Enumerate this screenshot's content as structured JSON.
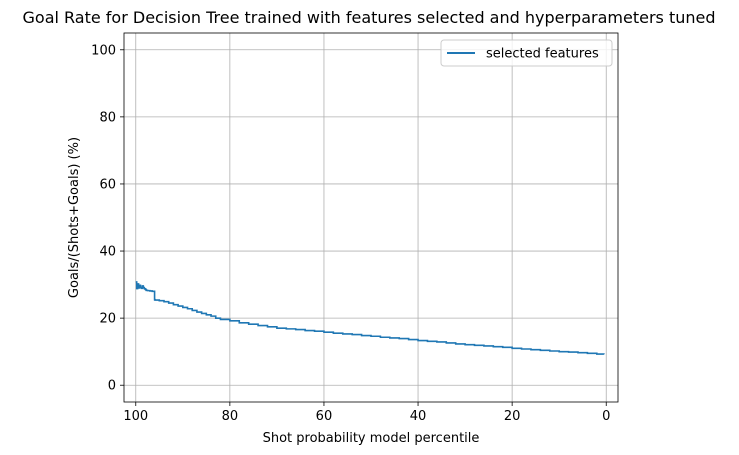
{
  "chart_data": {
    "type": "line",
    "title": "Goal Rate for Decision Tree trained with features selected and hyperparameters tuned",
    "xlabel": "Shot probability model percentile",
    "ylabel": "Goals/(Shots+Goals) (%)",
    "xlim": [
      102.5,
      -2.5
    ],
    "ylim": [
      -5,
      105
    ],
    "x_inverted": true,
    "xticks": [
      100,
      80,
      60,
      40,
      20,
      0
    ],
    "yticks": [
      0,
      20,
      40,
      60,
      80,
      100
    ],
    "grid": true,
    "legend_position": "top-right",
    "series": [
      {
        "name": "selected features",
        "color": "#1f77b4",
        "step": true,
        "x": [
          100,
          99.8,
          99.6,
          99.4,
          99.2,
          99.0,
          98.8,
          98.6,
          98.4,
          98.2,
          98.0,
          97.8,
          97.5,
          97.0,
          96.5,
          96.0,
          95.9,
          95.0,
          94.0,
          93.0,
          92.0,
          91.0,
          90.0,
          89.0,
          88.0,
          87.0,
          86.0,
          85.0,
          84.0,
          83.0,
          82.0,
          80.0,
          78.0,
          76.0,
          74.0,
          72.0,
          70.0,
          68.0,
          66.0,
          64.0,
          62.0,
          60.0,
          58.0,
          56.0,
          54.0,
          52.0,
          50.0,
          48.0,
          46.0,
          44.0,
          42.0,
          40.0,
          38.0,
          36.0,
          34.0,
          32.0,
          30.0,
          28.0,
          26.0,
          24.0,
          22.0,
          20.0,
          18.0,
          16.0,
          14.0,
          12.0,
          10.0,
          8.0,
          6.0,
          4.0,
          2.0,
          0.5
        ],
        "y": [
          30.8,
          28.8,
          30.2,
          29.0,
          29.8,
          29.2,
          28.9,
          29.6,
          29.1,
          28.8,
          28.6,
          28.3,
          28.2,
          28.1,
          28.0,
          25.5,
          25.4,
          25.2,
          24.9,
          24.5,
          24.0,
          23.6,
          23.2,
          22.8,
          22.3,
          21.8,
          21.4,
          21.0,
          20.6,
          20.0,
          19.6,
          19.2,
          18.6,
          18.2,
          17.8,
          17.4,
          17.0,
          16.8,
          16.6,
          16.3,
          16.1,
          15.8,
          15.5,
          15.3,
          15.1,
          14.8,
          14.6,
          14.3,
          14.1,
          13.9,
          13.6,
          13.3,
          13.1,
          12.9,
          12.6,
          12.3,
          12.1,
          11.9,
          11.7,
          11.5,
          11.3,
          11.0,
          10.8,
          10.6,
          10.4,
          10.2,
          10.0,
          9.9,
          9.7,
          9.5,
          9.3,
          9.2
        ]
      }
    ]
  }
}
